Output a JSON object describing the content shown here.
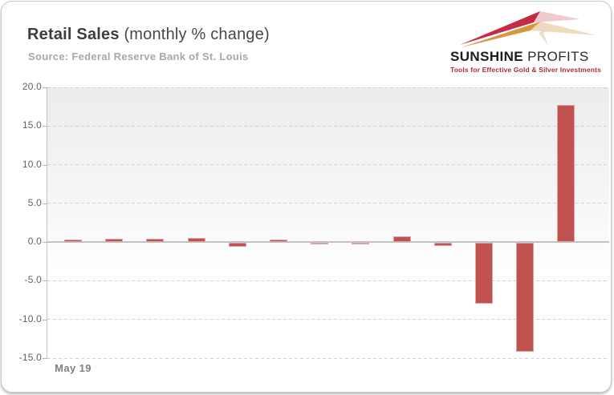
{
  "header": {
    "title_bold": "Retail Sales",
    "title_rest": " (monthly % change)",
    "subtitle": "Source: Federal Reserve Bank of St. Louis"
  },
  "logo": {
    "name_bold": "SUNSHINE",
    "name_rest": " PROFITS",
    "tagline": "Tools for Effective Gold & Silver Investments",
    "colors": {
      "ray_red": "#c72a45",
      "ray_gold": "#d5973b",
      "text": "#1d1d1d",
      "tagline": "#ad2c31"
    }
  },
  "chart_data": {
    "type": "bar",
    "title": "Retail Sales (monthly % change)",
    "source": "Source: Federal Reserve Bank of St. Louis",
    "categories": [
      "May 19",
      "",
      "",
      "",
      "",
      "",
      "",
      "",
      "",
      "",
      "",
      "",
      ""
    ],
    "values": [
      0.3,
      0.4,
      0.4,
      0.5,
      -0.5,
      0.3,
      -0.1,
      -0.1,
      0.7,
      -0.4,
      -7.9,
      -14.1,
      17.7
    ],
    "x_label": "May 19",
    "ylim": [
      -15,
      20
    ],
    "yticks": [
      20,
      15,
      10,
      5,
      0,
      -5,
      -10,
      -15
    ],
    "ytick_labels": [
      "20.0",
      "15.0",
      "10.0",
      "5.0",
      "0.0",
      "-5.0",
      "-10.0",
      "-15.0"
    ],
    "bar_color": "#c05250",
    "bar_border_color": "#dda39e",
    "grid": "horizontal-dashed",
    "legend": "none",
    "zero_line": true
  }
}
